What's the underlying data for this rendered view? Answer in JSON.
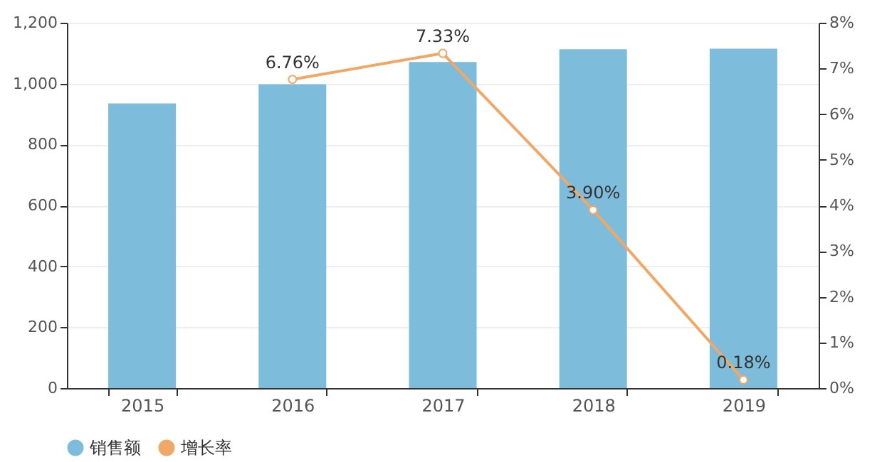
{
  "chart_data": {
    "type": "bar",
    "categories": [
      "2015",
      "2016",
      "2017",
      "2018",
      "2019"
    ],
    "series": [
      {
        "name": "销售额",
        "color": "#7ebcdb",
        "values": [
          935,
          998,
          1071,
          1113,
          1115
        ]
      },
      {
        "name": "增长率",
        "type": "line",
        "axis": "y2",
        "color": "#f0a868",
        "values": [
          null,
          6.76,
          7.33,
          3.9,
          0.18
        ],
        "value_labels": [
          null,
          "6.76%",
          "7.33%",
          "3.90%",
          "0.18%"
        ]
      }
    ],
    "ylim": [
      0,
      1200
    ],
    "yticks": [
      0,
      200,
      400,
      600,
      800,
      {
        "value": 1000,
        "label": "1,000"
      },
      {
        "value": 1200,
        "label": "1,200"
      }
    ],
    "y2lim": [
      0,
      8
    ],
    "y2ticks": [
      {
        "value": 0,
        "label": "0%"
      },
      {
        "value": 1,
        "label": "1%"
      },
      {
        "value": 2,
        "label": "2%"
      },
      {
        "value": 3,
        "label": "3%"
      },
      {
        "value": 4,
        "label": "4%"
      },
      {
        "value": 5,
        "label": "5%"
      },
      {
        "value": 6,
        "label": "6%"
      },
      {
        "value": 7,
        "label": "7%"
      },
      {
        "value": 8,
        "label": "8%"
      }
    ],
    "grid": "y",
    "legend": "bottom",
    "marker": "circle"
  }
}
